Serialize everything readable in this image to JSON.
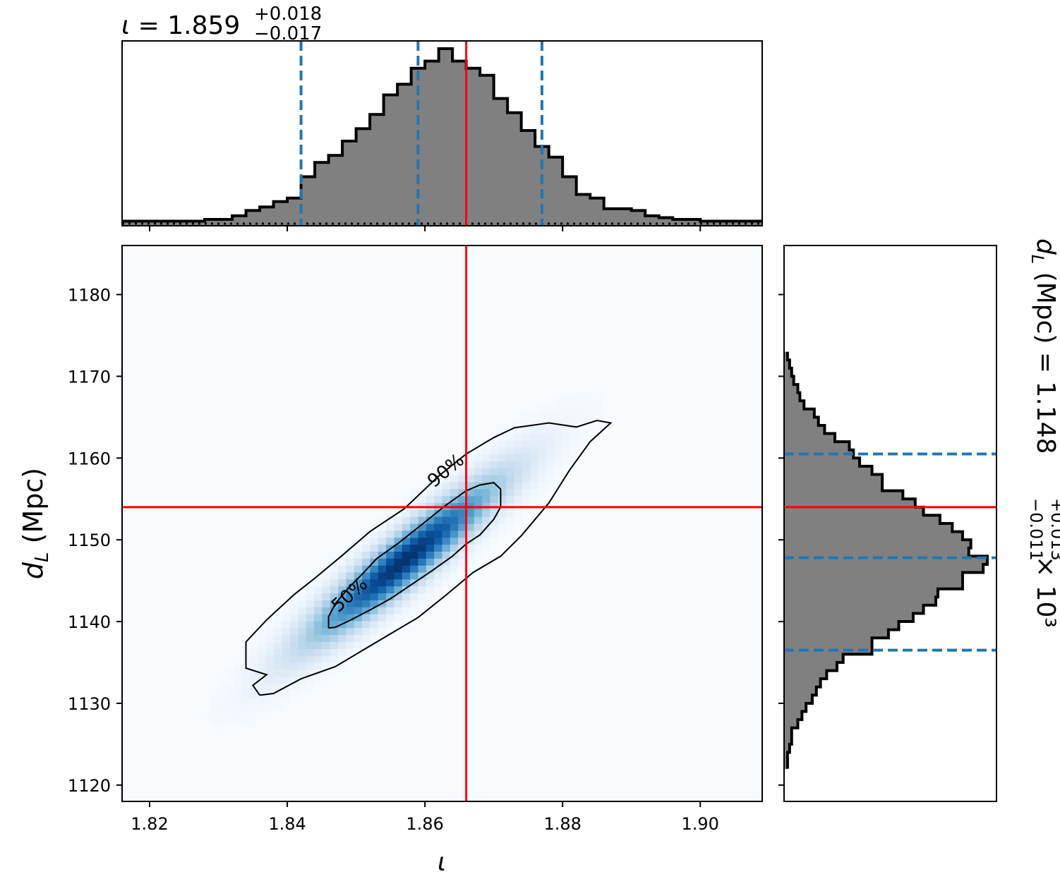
{
  "chart_data": [
    {
      "type": "histogram",
      "panel": "iota marginal",
      "title": {
        "symbol": "ι",
        "equals": " = ",
        "median": "1.859",
        "plus": "+0.018",
        "minus": "−0.017"
      },
      "xlim": [
        1.816,
        1.909
      ],
      "bin_edges": [
        1.814,
        1.816,
        1.818,
        1.82,
        1.822,
        1.824,
        1.826,
        1.828,
        1.83,
        1.832,
        1.834,
        1.836,
        1.838,
        1.84,
        1.842,
        1.844,
        1.846,
        1.848,
        1.85,
        1.852,
        1.854,
        1.856,
        1.858,
        1.86,
        1.862,
        1.864,
        1.866,
        1.868,
        1.87,
        1.872,
        1.874,
        1.876,
        1.878,
        1.88,
        1.882,
        1.884,
        1.886,
        1.888,
        1.89,
        1.892,
        1.894,
        1.896,
        1.898,
        1.9,
        1.902,
        1.904,
        1.906,
        1.908,
        1.91
      ],
      "counts": [
        0.01,
        0.01,
        0.01,
        0.01,
        0.01,
        0.01,
        0.01,
        0.02,
        0.02,
        0.04,
        0.07,
        0.09,
        0.12,
        0.14,
        0.26,
        0.34,
        0.38,
        0.46,
        0.53,
        0.61,
        0.72,
        0.78,
        0.87,
        0.91,
        0.98,
        0.91,
        0.87,
        0.83,
        0.7,
        0.62,
        0.52,
        0.43,
        0.37,
        0.26,
        0.16,
        0.14,
        0.08,
        0.08,
        0.07,
        0.04,
        0.03,
        0.02,
        0.02,
        0.01,
        0.01,
        0.01,
        0.01,
        0.01
      ],
      "quantiles": [
        1.842,
        1.859,
        1.877
      ],
      "truth": 1.866
    },
    {
      "type": "heatmap",
      "panel": "joint density",
      "xlabel": "ι",
      "ylabel": "d_L (Mpc)",
      "xlim": [
        1.816,
        1.909
      ],
      "ylim": [
        1118,
        1186
      ],
      "xticks": [
        "1.82",
        "1.84",
        "1.86",
        "1.88",
        "1.90"
      ],
      "xtick_values": [
        1.82,
        1.84,
        1.86,
        1.88,
        1.9
      ],
      "yticks": [
        "1120",
        "1130",
        "1140",
        "1150",
        "1160",
        "1170",
        "1180"
      ],
      "ytick_values": [
        1120,
        1130,
        1140,
        1150,
        1160,
        1170,
        1180
      ],
      "density": {
        "center": [
          1.857,
          1147.5
        ],
        "sigma_x": 0.0095,
        "sigma_y": 6.8,
        "correlation": 0.93
      },
      "contours": [
        {
          "label": "50%",
          "label_at": [
            1.849,
            1143.3
          ],
          "label_angle": -42,
          "points": [
            [
              1.846,
              1139.2
            ],
            [
              1.846,
              1140.6
            ],
            [
              1.847,
              1142.2
            ],
            [
              1.849,
              1144.2
            ],
            [
              1.851,
              1145.9
            ],
            [
              1.853,
              1147.7
            ],
            [
              1.856,
              1149.5
            ],
            [
              1.859,
              1151.5
            ],
            [
              1.863,
              1154.2
            ],
            [
              1.866,
              1156.0
            ],
            [
              1.868,
              1156.7
            ],
            [
              1.87,
              1157.0
            ],
            [
              1.871,
              1156.2
            ],
            [
              1.871,
              1154.0
            ],
            [
              1.87,
              1152.5
            ],
            [
              1.868,
              1150.6
            ],
            [
              1.866,
              1149.5
            ],
            [
              1.864,
              1148.0
            ],
            [
              1.861,
              1146.2
            ],
            [
              1.858,
              1144.5
            ],
            [
              1.855,
              1142.8
            ],
            [
              1.852,
              1141.4
            ],
            [
              1.849,
              1140.1
            ],
            [
              1.847,
              1139.3
            ],
            [
              1.846,
              1139.2
            ]
          ]
        },
        {
          "label": "90%",
          "label_at": [
            1.863,
            1158.5
          ],
          "label_angle": -40,
          "points": [
            [
              1.836,
              1131.0
            ],
            [
              1.835,
              1132.2
            ],
            [
              1.837,
              1133.5
            ],
            [
              1.834,
              1134.3
            ],
            [
              1.834,
              1137.5
            ],
            [
              1.837,
              1140.2
            ],
            [
              1.841,
              1143.3
            ],
            [
              1.844,
              1145.3
            ],
            [
              1.848,
              1148.1
            ],
            [
              1.852,
              1151.0
            ],
            [
              1.857,
              1153.8
            ],
            [
              1.862,
              1157.8
            ],
            [
              1.866,
              1160.5
            ],
            [
              1.87,
              1162.5
            ],
            [
              1.873,
              1163.7
            ],
            [
              1.878,
              1164.3
            ],
            [
              1.882,
              1163.8
            ],
            [
              1.885,
              1164.6
            ],
            [
              1.887,
              1164.3
            ],
            [
              1.884,
              1162.0
            ],
            [
              1.881,
              1158.5
            ],
            [
              1.878,
              1154.5
            ],
            [
              1.876,
              1152.5
            ],
            [
              1.874,
              1150.5
            ],
            [
              1.871,
              1148.0
            ],
            [
              1.867,
              1146.0
            ],
            [
              1.863,
              1143.2
            ],
            [
              1.859,
              1140.5
            ],
            [
              1.853,
              1137.5
            ],
            [
              1.847,
              1134.5
            ],
            [
              1.842,
              1133.0
            ],
            [
              1.838,
              1131.2
            ],
            [
              1.836,
              1131.0
            ]
          ]
        }
      ],
      "truth": [
        1.866,
        1154
      ]
    },
    {
      "type": "histogram",
      "panel": "distance marginal",
      "orientation": "horizontal",
      "title": {
        "text": "d_L (Mpc) = 1.148",
        "plus": "+0.013",
        "minus": "−0.011",
        "scale": "× 10³"
      },
      "ylim": [
        1118,
        1186
      ],
      "bin_edges": [
        1122,
        1123,
        1124,
        1125,
        1126,
        1127,
        1128,
        1129,
        1130,
        1131,
        1132,
        1133,
        1134,
        1135,
        1136,
        1137,
        1138,
        1139,
        1140,
        1141,
        1142,
        1143,
        1144,
        1145,
        1146,
        1147,
        1148,
        1149,
        1150,
        1151,
        1152,
        1153,
        1154,
        1155,
        1156,
        1157,
        1158,
        1159,
        1160,
        1161,
        1162,
        1163,
        1164,
        1165,
        1166,
        1167,
        1168,
        1169,
        1170,
        1171,
        1172,
        1173
      ],
      "counts": [
        0.01,
        0.01,
        0.02,
        0.03,
        0.03,
        0.06,
        0.08,
        0.1,
        0.13,
        0.15,
        0.17,
        0.2,
        0.25,
        0.28,
        0.42,
        0.42,
        0.5,
        0.55,
        0.62,
        0.67,
        0.73,
        0.74,
        0.86,
        0.86,
        0.96,
        0.98,
        0.89,
        0.9,
        0.86,
        0.81,
        0.75,
        0.67,
        0.63,
        0.57,
        0.47,
        0.47,
        0.42,
        0.36,
        0.33,
        0.31,
        0.24,
        0.19,
        0.16,
        0.14,
        0.09,
        0.07,
        0.06,
        0.04,
        0.03,
        0.02,
        0.01
      ],
      "quantiles": [
        1136.5,
        1147.8,
        1160.5
      ],
      "truth": 1154
    }
  ],
  "colors": {
    "truth": "#ff0000",
    "quantile": "#1f77b4",
    "hist_fill": "#808080",
    "hist_edge": "#000000",
    "cmap": "Blues"
  }
}
